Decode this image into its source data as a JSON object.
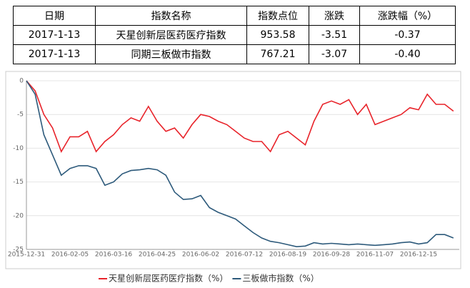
{
  "table": {
    "header": [
      "日期",
      "指数名称",
      "指数点位",
      "涨跌",
      "涨跌幅（%）"
    ],
    "rows": [
      [
        "2017-1-13",
        "天星创新层医药医疗指数",
        "953.58",
        "-3.51",
        "-0.37"
      ],
      [
        "2017-1-13",
        "同期三板做市指数",
        "767.21",
        "-3.07",
        "-0.40"
      ]
    ]
  },
  "chart_data": {
    "type": "line",
    "categories": [
      "2015-12-31",
      null,
      null,
      null,
      null,
      "2016-02-05",
      null,
      null,
      null,
      null,
      "2016-03-16",
      null,
      null,
      null,
      null,
      "2016-04-25",
      null,
      null,
      null,
      null,
      "2016-06-02",
      null,
      null,
      null,
      null,
      "2016-07-12",
      null,
      null,
      null,
      null,
      "2016-08-19",
      null,
      null,
      null,
      null,
      "2016-09-28",
      null,
      null,
      null,
      null,
      "2016-11-07",
      null,
      null,
      null,
      null,
      "2016-12-15",
      null,
      null,
      null,
      null
    ],
    "series": [
      {
        "name": "天星创新层医药医疗指数（%）",
        "color": "#e8232a",
        "values": [
          0,
          -1.5,
          -5,
          -7,
          -10.5,
          -8.3,
          -8.3,
          -7.5,
          -10.5,
          -9,
          -8,
          -6.5,
          -5.5,
          -6,
          -3.8,
          -6,
          -7.5,
          -7,
          -8.5,
          -6.5,
          -5,
          -5.3,
          -6,
          -6.5,
          -7.5,
          -8.5,
          -9,
          -9,
          -10.5,
          -8,
          -7.5,
          -8.5,
          -9.5,
          -6,
          -3.5,
          -3,
          -3.5,
          -2.8,
          -5,
          -3.5,
          -6.5,
          -6,
          -5.5,
          -5,
          -4,
          -4.3,
          -2,
          -3.5,
          -3.5,
          -4.5
        ]
      },
      {
        "name": "三板做市指数（%）",
        "color": "#2d5a7b",
        "values": [
          0,
          -2,
          -8,
          -11,
          -14,
          -13,
          -12.6,
          -12.6,
          -13,
          -15.5,
          -15,
          -13.8,
          -13.3,
          -13.2,
          -13,
          -13.2,
          -14,
          -16.5,
          -17.6,
          -17.5,
          -17,
          -18.8,
          -19.5,
          -20,
          -20.5,
          -21.5,
          -22.5,
          -23.3,
          -23.8,
          -24,
          -24.3,
          -24.6,
          -24.5,
          -24,
          -24.2,
          -24.1,
          -24.2,
          -24.3,
          -24.2,
          -24.3,
          -24.4,
          -24.3,
          -24.2,
          -24,
          -23.9,
          -24.2,
          -24,
          -22.8,
          -22.8,
          -23.3
        ]
      }
    ],
    "ylim": [
      -25,
      0
    ],
    "yticks": [
      0,
      -5,
      -10,
      -15,
      -20,
      -25
    ],
    "grid": true,
    "legend": "bottom"
  }
}
